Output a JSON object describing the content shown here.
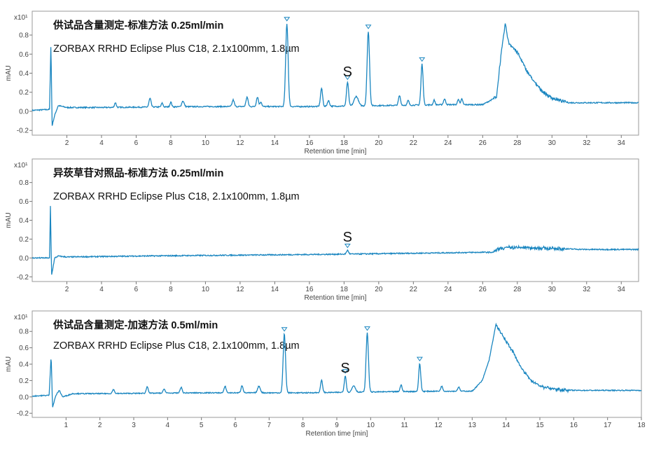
{
  "chart_data": [
    {
      "type": "line",
      "title": "供试品含量测定-标准方法 0.25ml/min",
      "subtitle": "ZORBAX RRHD Eclipse Plus C18, 2.1x100mm, 1.8µm",
      "ylabel": "mAU",
      "y_multiplier": "x10¹",
      "xlabel": "Retention time [min]",
      "xlim": [
        0.0,
        35.0
      ],
      "ylim": [
        -0.25,
        1.05
      ],
      "x_ticks": [
        2,
        4,
        6,
        8,
        10,
        12,
        14,
        16,
        18,
        20,
        22,
        24,
        26,
        28,
        30,
        32,
        34
      ],
      "y_ticks": [
        -0.2,
        0.0,
        0.2,
        0.4,
        0.6,
        0.8
      ],
      "y_tick_labels": [
        "-0.2",
        "0.0",
        "0.2",
        "0.4",
        "0.6",
        "0.8"
      ],
      "peak_annotations": [
        {
          "label": "S",
          "x": 18.2
        }
      ],
      "series": [
        {
          "color": "#1a86c0",
          "baseline": [
            [
              0.0,
              0.01
            ],
            [
              1.0,
              0.02
            ],
            [
              1.08,
              0.72
            ],
            [
              1.15,
              -0.15
            ],
            [
              1.3,
              -0.04
            ],
            [
              1.5,
              0.06
            ],
            [
              2.0,
              0.04
            ],
            [
              4.0,
              0.04
            ],
            [
              10.0,
              0.05
            ],
            [
              16.0,
              0.05
            ],
            [
              20.0,
              0.06
            ],
            [
              24.0,
              0.07
            ],
            [
              26.0,
              0.07
            ],
            [
              26.8,
              0.15
            ],
            [
              27.0,
              0.5
            ],
            [
              27.3,
              0.92
            ],
            [
              27.5,
              0.72
            ],
            [
              28.0,
              0.62
            ],
            [
              28.5,
              0.44
            ],
            [
              29.0,
              0.3
            ],
            [
              29.5,
              0.2
            ],
            [
              30.0,
              0.14
            ],
            [
              30.5,
              0.11
            ],
            [
              31.0,
              0.09
            ],
            [
              35.0,
              0.09
            ]
          ],
          "peaks": [
            [
              4.8,
              0.05,
              0.05
            ],
            [
              6.8,
              0.09,
              0.06
            ],
            [
              7.5,
              0.04,
              0.05
            ],
            [
              8.0,
              0.05,
              0.05
            ],
            [
              8.7,
              0.06,
              0.07
            ],
            [
              11.6,
              0.07,
              0.06
            ],
            [
              12.4,
              0.1,
              0.06
            ],
            [
              13.0,
              0.1,
              0.06
            ],
            [
              13.2,
              0.05,
              0.05
            ],
            [
              14.7,
              0.87,
              0.07
            ],
            [
              16.7,
              0.19,
              0.06
            ],
            [
              17.1,
              0.06,
              0.06
            ],
            [
              18.2,
              0.25,
              0.06
            ],
            [
              18.7,
              0.1,
              0.12
            ],
            [
              19.4,
              0.78,
              0.07
            ],
            [
              21.2,
              0.1,
              0.06
            ],
            [
              21.7,
              0.05,
              0.05
            ],
            [
              22.5,
              0.43,
              0.06
            ],
            [
              23.2,
              0.05,
              0.05
            ],
            [
              23.8,
              0.06,
              0.06
            ],
            [
              24.6,
              0.06,
              0.05
            ],
            [
              24.8,
              0.06,
              0.05
            ]
          ],
          "marked_peaks": [
            14.7,
            18.2,
            19.4,
            22.5
          ]
        }
      ]
    },
    {
      "type": "line",
      "title": "异莰草苷对照品-标准方法 0.25ml/min",
      "subtitle": "ZORBAX RRHD Eclipse Plus C18, 2.1x100mm, 1.8µm",
      "ylabel": "mAU",
      "y_multiplier": "x10¹",
      "xlabel": "Retention time [min]",
      "xlim": [
        0.0,
        35.0
      ],
      "ylim": [
        -0.25,
        1.05
      ],
      "x_ticks": [
        2,
        4,
        6,
        8,
        10,
        12,
        14,
        16,
        18,
        20,
        22,
        24,
        26,
        28,
        30,
        32,
        34
      ],
      "y_ticks": [
        -0.2,
        0.0,
        0.2,
        0.4,
        0.6,
        0.8
      ],
      "y_tick_labels": [
        "-0.2",
        "0.0",
        "0.2",
        "0.4",
        "0.6",
        "0.8"
      ],
      "peak_annotations": [
        {
          "label": "S",
          "x": 18.2
        }
      ],
      "series": [
        {
          "color": "#1a86c0",
          "baseline": [
            [
              0.0,
              0.0
            ],
            [
              1.0,
              0.0
            ],
            [
              1.05,
              0.55
            ],
            [
              1.12,
              -0.18
            ],
            [
              1.3,
              0.0
            ],
            [
              1.5,
              0.02
            ],
            [
              2.0,
              0.01
            ],
            [
              6.0,
              0.02
            ],
            [
              12.0,
              0.03
            ],
            [
              18.0,
              0.04
            ],
            [
              22.0,
              0.05
            ],
            [
              26.0,
              0.06
            ],
            [
              26.6,
              0.06
            ],
            [
              27.0,
              0.1
            ],
            [
              27.5,
              0.11
            ],
            [
              28.5,
              0.11
            ],
            [
              30.0,
              0.1
            ],
            [
              32.0,
              0.09
            ],
            [
              35.0,
              0.09
            ]
          ],
          "peaks": [
            [
              18.2,
              0.04,
              0.06
            ]
          ],
          "marked_peaks": [
            18.2
          ]
        }
      ]
    },
    {
      "type": "line",
      "title": "供试品含量测定-加速方法 0.5ml/min",
      "subtitle": "ZORBAX RRHD Eclipse Plus C18, 2.1x100mm, 1.8µm",
      "ylabel": "mAU",
      "y_multiplier": "x10¹",
      "xlabel": "Retention time [min]",
      "xlim": [
        0.0,
        18.0
      ],
      "ylim": [
        -0.25,
        1.05
      ],
      "x_ticks": [
        1,
        2,
        3,
        4,
        5,
        6,
        7,
        8,
        9,
        10,
        11,
        12,
        13,
        14,
        15,
        16,
        17,
        18
      ],
      "y_ticks": [
        -0.2,
        0.0,
        0.2,
        0.4,
        0.6,
        0.8
      ],
      "y_tick_labels": [
        "-0.2",
        "0.0",
        "0.2",
        "0.4",
        "0.6",
        "0.8"
      ],
      "peak_annotations": [
        {
          "label": "S",
          "x": 9.25
        }
      ],
      "series": [
        {
          "color": "#1a86c0",
          "baseline": [
            [
              0.0,
              0.01
            ],
            [
              0.5,
              0.02
            ],
            [
              0.56,
              0.52
            ],
            [
              0.6,
              -0.13
            ],
            [
              0.7,
              0.02
            ],
            [
              0.8,
              0.08
            ],
            [
              0.9,
              0.0
            ],
            [
              1.2,
              0.04
            ],
            [
              2.0,
              0.04
            ],
            [
              5.0,
              0.05
            ],
            [
              8.0,
              0.05
            ],
            [
              10.0,
              0.06
            ],
            [
              12.0,
              0.07
            ],
            [
              13.0,
              0.07
            ],
            [
              13.3,
              0.2
            ],
            [
              13.5,
              0.45
            ],
            [
              13.7,
              0.88
            ],
            [
              13.9,
              0.75
            ],
            [
              14.2,
              0.55
            ],
            [
              14.5,
              0.32
            ],
            [
              14.8,
              0.18
            ],
            [
              15.1,
              0.12
            ],
            [
              15.5,
              0.09
            ],
            [
              16.0,
              0.08
            ],
            [
              18.0,
              0.08
            ]
          ],
          "peaks": [
            [
              2.4,
              0.05,
              0.03
            ],
            [
              3.4,
              0.08,
              0.03
            ],
            [
              3.9,
              0.05,
              0.03
            ],
            [
              4.4,
              0.07,
              0.03
            ],
            [
              5.7,
              0.08,
              0.03
            ],
            [
              6.2,
              0.09,
              0.03
            ],
            [
              6.7,
              0.08,
              0.04
            ],
            [
              7.45,
              0.72,
              0.035
            ],
            [
              8.55,
              0.15,
              0.03
            ],
            [
              9.25,
              0.2,
              0.03
            ],
            [
              9.5,
              0.08,
              0.05
            ],
            [
              9.9,
              0.72,
              0.035
            ],
            [
              10.9,
              0.08,
              0.03
            ],
            [
              11.45,
              0.34,
              0.03
            ],
            [
              12.1,
              0.06,
              0.03
            ],
            [
              12.6,
              0.05,
              0.03
            ]
          ],
          "marked_peaks": [
            7.45,
            9.25,
            9.9,
            11.45
          ]
        }
      ]
    }
  ]
}
